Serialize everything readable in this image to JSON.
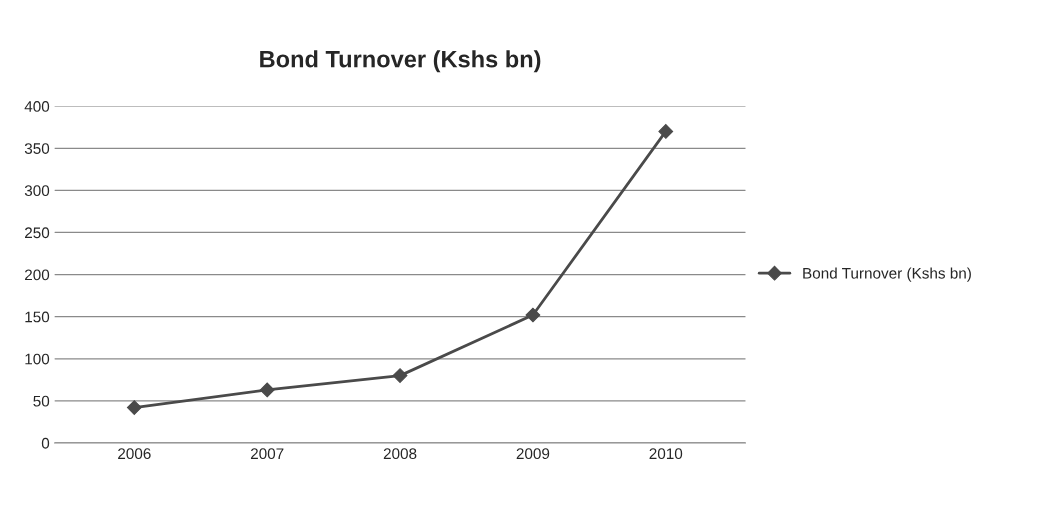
{
  "chart_data": {
    "type": "line",
    "title": "Bond Turnover (Kshs bn)",
    "categories": [
      "2006",
      "2007",
      "2008",
      "2009",
      "2010"
    ],
    "series": [
      {
        "name": "Bond Turnover (Kshs bn)",
        "color": "#4a4a4a",
        "values": [
          42,
          63,
          80,
          152,
          370
        ]
      }
    ],
    "ylim": [
      0,
      400
    ],
    "yticks": [
      0,
      50,
      100,
      150,
      200,
      250,
      300,
      350,
      400
    ],
    "grid": "y",
    "legend": "right",
    "marker": "diamond",
    "line_style": "solid"
  }
}
